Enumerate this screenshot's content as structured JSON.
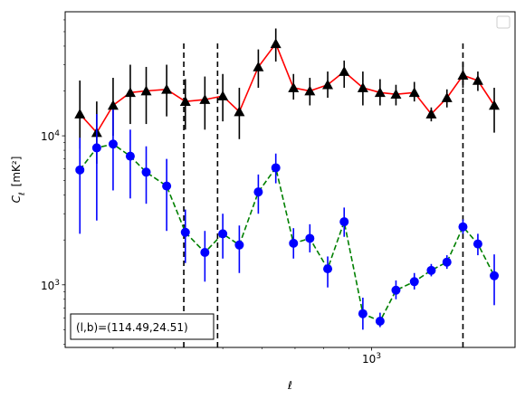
{
  "chart_data": {
    "type": "line",
    "title": "",
    "xlabel": "ℓ",
    "ylabel": "C_ℓ [mK²]",
    "xscale": "log",
    "yscale": "log",
    "xlim": [
      240,
      1950
    ],
    "ylim": [
      380,
      68000
    ],
    "x_tick_labels": [
      {
        "value": 1000,
        "label": "10^3"
      }
    ],
    "y_tick_labels": [
      {
        "value": 1000,
        "label": "10^3"
      },
      {
        "value": 10000,
        "label": "10^4"
      }
    ],
    "legend": {
      "placement": "upper right",
      "entries": []
    },
    "annotation": "(l,b)=(114.49,24.51)",
    "vertical_lines": [
      417,
      488,
      1530
    ],
    "series": [
      {
        "style": "solid",
        "color": "#ff0000",
        "marker": "triangle",
        "marker_color": "#000000",
        "errorbar_color": "#000000",
        "points": [
          {
            "x": 257,
            "y": 14000,
            "err_low": 8200,
            "err_high": 23500
          },
          {
            "x": 278,
            "y": 10500,
            "err_low": 6500,
            "err_high": 17000
          },
          {
            "x": 300,
            "y": 16000,
            "err_low": 10000,
            "err_high": 24500
          },
          {
            "x": 325,
            "y": 19500,
            "err_low": 12000,
            "err_high": 30000
          },
          {
            "x": 350,
            "y": 20000,
            "err_low": 12000,
            "err_high": 29000
          },
          {
            "x": 385,
            "y": 20500,
            "err_low": 13500,
            "err_high": 30000
          },
          {
            "x": 420,
            "y": 17000,
            "err_low": 11000,
            "err_high": 24000
          },
          {
            "x": 460,
            "y": 17500,
            "err_low": 11000,
            "err_high": 25000
          },
          {
            "x": 500,
            "y": 18500,
            "err_low": 12500,
            "err_high": 26000
          },
          {
            "x": 540,
            "y": 14500,
            "err_low": 9500,
            "err_high": 21000
          },
          {
            "x": 590,
            "y": 29000,
            "err_low": 21000,
            "err_high": 38000
          },
          {
            "x": 640,
            "y": 41500,
            "err_low": 31500,
            "err_high": 52500
          },
          {
            "x": 695,
            "y": 21000,
            "err_low": 17500,
            "err_high": 26000
          },
          {
            "x": 750,
            "y": 20000,
            "err_low": 16000,
            "err_high": 24500
          },
          {
            "x": 815,
            "y": 22000,
            "err_low": 18000,
            "err_high": 27000
          },
          {
            "x": 880,
            "y": 27000,
            "err_low": 21000,
            "err_high": 32000
          },
          {
            "x": 960,
            "y": 21000,
            "err_low": 16000,
            "err_high": 27000
          },
          {
            "x": 1040,
            "y": 19500,
            "err_low": 16000,
            "err_high": 24000
          },
          {
            "x": 1120,
            "y": 19000,
            "err_low": 16000,
            "err_high": 22000
          },
          {
            "x": 1220,
            "y": 19500,
            "err_low": 17000,
            "err_high": 23000
          },
          {
            "x": 1320,
            "y": 14000,
            "err_low": 12500,
            "err_high": 15500
          },
          {
            "x": 1420,
            "y": 18000,
            "err_low": 15500,
            "err_high": 20500
          },
          {
            "x": 1530,
            "y": 25500,
            "err_low": 21000,
            "err_high": 31000
          },
          {
            "x": 1640,
            "y": 23500,
            "err_low": 20000,
            "err_high": 27000
          },
          {
            "x": 1770,
            "y": 16000,
            "err_low": 10500,
            "err_high": 21000
          }
        ]
      },
      {
        "style": "dashed",
        "color": "#008000",
        "marker": "circle",
        "marker_color": "#0000ff",
        "errorbar_color": "#0000ff",
        "points": [
          {
            "x": 257,
            "y": 5900,
            "err_low": 2200,
            "err_high": 9700
          },
          {
            "x": 278,
            "y": 8300,
            "err_low": 2700,
            "err_high": 14000
          },
          {
            "x": 300,
            "y": 8800,
            "err_low": 4300,
            "err_high": 15000
          },
          {
            "x": 325,
            "y": 7300,
            "err_low": 3800,
            "err_high": 11000
          },
          {
            "x": 350,
            "y": 5700,
            "err_low": 3500,
            "err_high": 8500
          },
          {
            "x": 385,
            "y": 4600,
            "err_low": 2300,
            "err_high": 7000
          },
          {
            "x": 420,
            "y": 2250,
            "err_low": 1400,
            "err_high": 3200
          },
          {
            "x": 460,
            "y": 1650,
            "err_low": 1050,
            "err_high": 2300
          },
          {
            "x": 500,
            "y": 2200,
            "err_low": 1500,
            "err_high": 3000
          },
          {
            "x": 540,
            "y": 1850,
            "err_low": 1200,
            "err_high": 2500
          },
          {
            "x": 590,
            "y": 4200,
            "err_low": 3000,
            "err_high": 5500
          },
          {
            "x": 640,
            "y": 6100,
            "err_low": 4800,
            "err_high": 7600
          },
          {
            "x": 695,
            "y": 1900,
            "err_low": 1500,
            "err_high": 2400
          },
          {
            "x": 750,
            "y": 2050,
            "err_low": 1650,
            "err_high": 2550
          },
          {
            "x": 815,
            "y": 1280,
            "err_low": 960,
            "err_high": 1550
          },
          {
            "x": 880,
            "y": 2650,
            "err_low": 2100,
            "err_high": 3300
          },
          {
            "x": 960,
            "y": 640,
            "err_low": 500,
            "err_high": 820
          },
          {
            "x": 1040,
            "y": 570,
            "err_low": 520,
            "err_high": 650
          },
          {
            "x": 1120,
            "y": 920,
            "err_low": 800,
            "err_high": 1070
          },
          {
            "x": 1220,
            "y": 1050,
            "err_low": 930,
            "err_high": 1200
          },
          {
            "x": 1320,
            "y": 1250,
            "err_low": 1140,
            "err_high": 1380
          },
          {
            "x": 1420,
            "y": 1420,
            "err_low": 1280,
            "err_high": 1580
          },
          {
            "x": 1530,
            "y": 2450,
            "err_low": 2200,
            "err_high": 2750
          },
          {
            "x": 1640,
            "y": 1880,
            "err_low": 1580,
            "err_high": 2200
          },
          {
            "x": 1770,
            "y": 1150,
            "err_low": 730,
            "err_high": 1600
          }
        ]
      }
    ]
  }
}
